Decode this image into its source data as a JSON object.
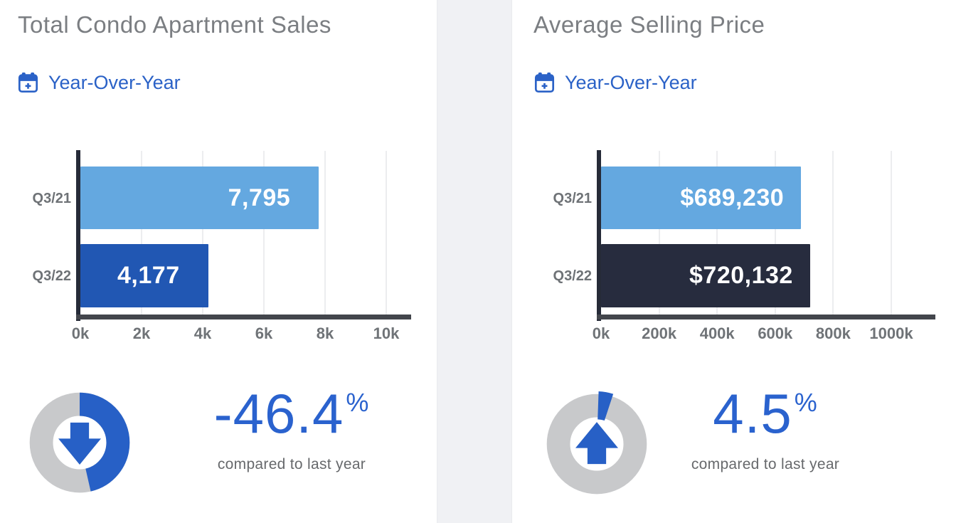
{
  "colors": {
    "accent_blue": "#2760C6",
    "link_blue": "#2B62C7",
    "pct_text_blue": "#2A62CE",
    "donut_track_gray": "#C8C9CB",
    "title_gray": "#7B7E82",
    "axis_label_gray": "#6F7377",
    "bar_light_blue": "#64A8E0",
    "bar_dark_blue": "#2157B3",
    "bar_navy": "#272C3E"
  },
  "chart_data": [
    {
      "type": "bar",
      "orientation": "horizontal",
      "title": "Total Condo Apartment Sales",
      "period_selector": "Year-Over-Year",
      "categories": [
        "Q3/21",
        "Q3/22"
      ],
      "values": [
        7795,
        4177
      ],
      "value_labels": [
        "7,795",
        "4,177"
      ],
      "bar_colors": [
        "#64A8E0",
        "#2157B3"
      ],
      "xlim": [
        0,
        10000
      ],
      "x_ticks": [
        "0k",
        "2k",
        "4k",
        "6k",
        "8k",
        "10k"
      ],
      "grid": true,
      "legend": "none",
      "comparison": {
        "value": "-46.4",
        "unit": "%",
        "pct_change": -46.4,
        "direction": "down",
        "caption": "compared to last year",
        "donut_exploded": false
      }
    },
    {
      "type": "bar",
      "orientation": "horizontal",
      "title": "Average Selling Price",
      "period_selector": "Year-Over-Year",
      "categories": [
        "Q3/21",
        "Q3/22"
      ],
      "values": [
        689230,
        720132
      ],
      "value_labels": [
        "$689,230",
        "$720,132"
      ],
      "bar_colors": [
        "#64A8E0",
        "#272C3E"
      ],
      "xlim": [
        0,
        1000000
      ],
      "x_ticks": [
        "0k",
        "200k",
        "400k",
        "600k",
        "800k",
        "1000k"
      ],
      "grid": true,
      "legend": "none",
      "comparison": {
        "value": "4.5",
        "unit": "%",
        "pct_change": 4.5,
        "direction": "up",
        "caption": "compared to last year",
        "donut_exploded": true
      }
    }
  ]
}
